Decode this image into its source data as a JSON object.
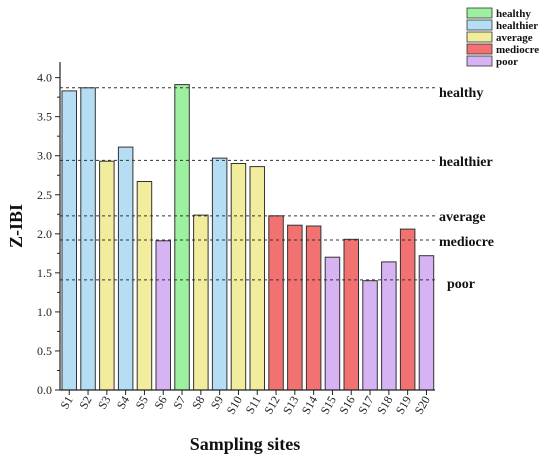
{
  "chart_data": {
    "type": "bar",
    "xlabel": "Sampling sites",
    "ylabel": "Z-IBI",
    "ylim": [
      0,
      4.2
    ],
    "yticks": [
      "0.0",
      "0.5",
      "1.0",
      "1.5",
      "2.0",
      "2.5",
      "3.0",
      "3.5",
      "4.0"
    ],
    "categories": [
      "S1",
      "S2",
      "S3",
      "S4",
      "S5",
      "S6",
      "S7",
      "S8",
      "S9",
      "S10",
      "S11",
      "S12",
      "S13",
      "S14",
      "S15",
      "S16",
      "S17",
      "S18",
      "S19",
      "S20"
    ],
    "values": [
      3.83,
      3.87,
      2.93,
      3.11,
      2.67,
      1.91,
      3.91,
      2.24,
      2.97,
      2.9,
      2.86,
      2.23,
      2.11,
      2.1,
      1.7,
      1.93,
      1.4,
      1.64,
      2.06,
      1.72
    ],
    "bar_class": [
      "healthier",
      "healthier",
      "average",
      "healthier",
      "average",
      "poor",
      "healthy",
      "average",
      "healthier",
      "average",
      "average",
      "mediocre",
      "mediocre",
      "mediocre",
      "poor",
      "mediocre",
      "poor",
      "poor",
      "mediocre",
      "poor"
    ],
    "legend": [
      {
        "key": "healthy",
        "label": "healthy",
        "color": "#9df0a0"
      },
      {
        "key": "healthier",
        "label": "healthier",
        "color": "#b5def5"
      },
      {
        "key": "average",
        "label": "average",
        "color": "#f2ec9d"
      },
      {
        "key": "mediocre",
        "label": "mediocre",
        "color": "#f27272"
      },
      {
        "key": "poor",
        "label": "poor",
        "color": "#d6b3f3"
      }
    ],
    "thresholds": [
      {
        "label": "healthy",
        "value": 3.87
      },
      {
        "label": "healthier",
        "value": 2.94
      },
      {
        "label": "average",
        "value": 2.23
      },
      {
        "label": "mediocre",
        "value": 1.92
      },
      {
        "label": "poor",
        "value": 1.41
      }
    ],
    "legend_position": "top-right",
    "grid": false
  }
}
